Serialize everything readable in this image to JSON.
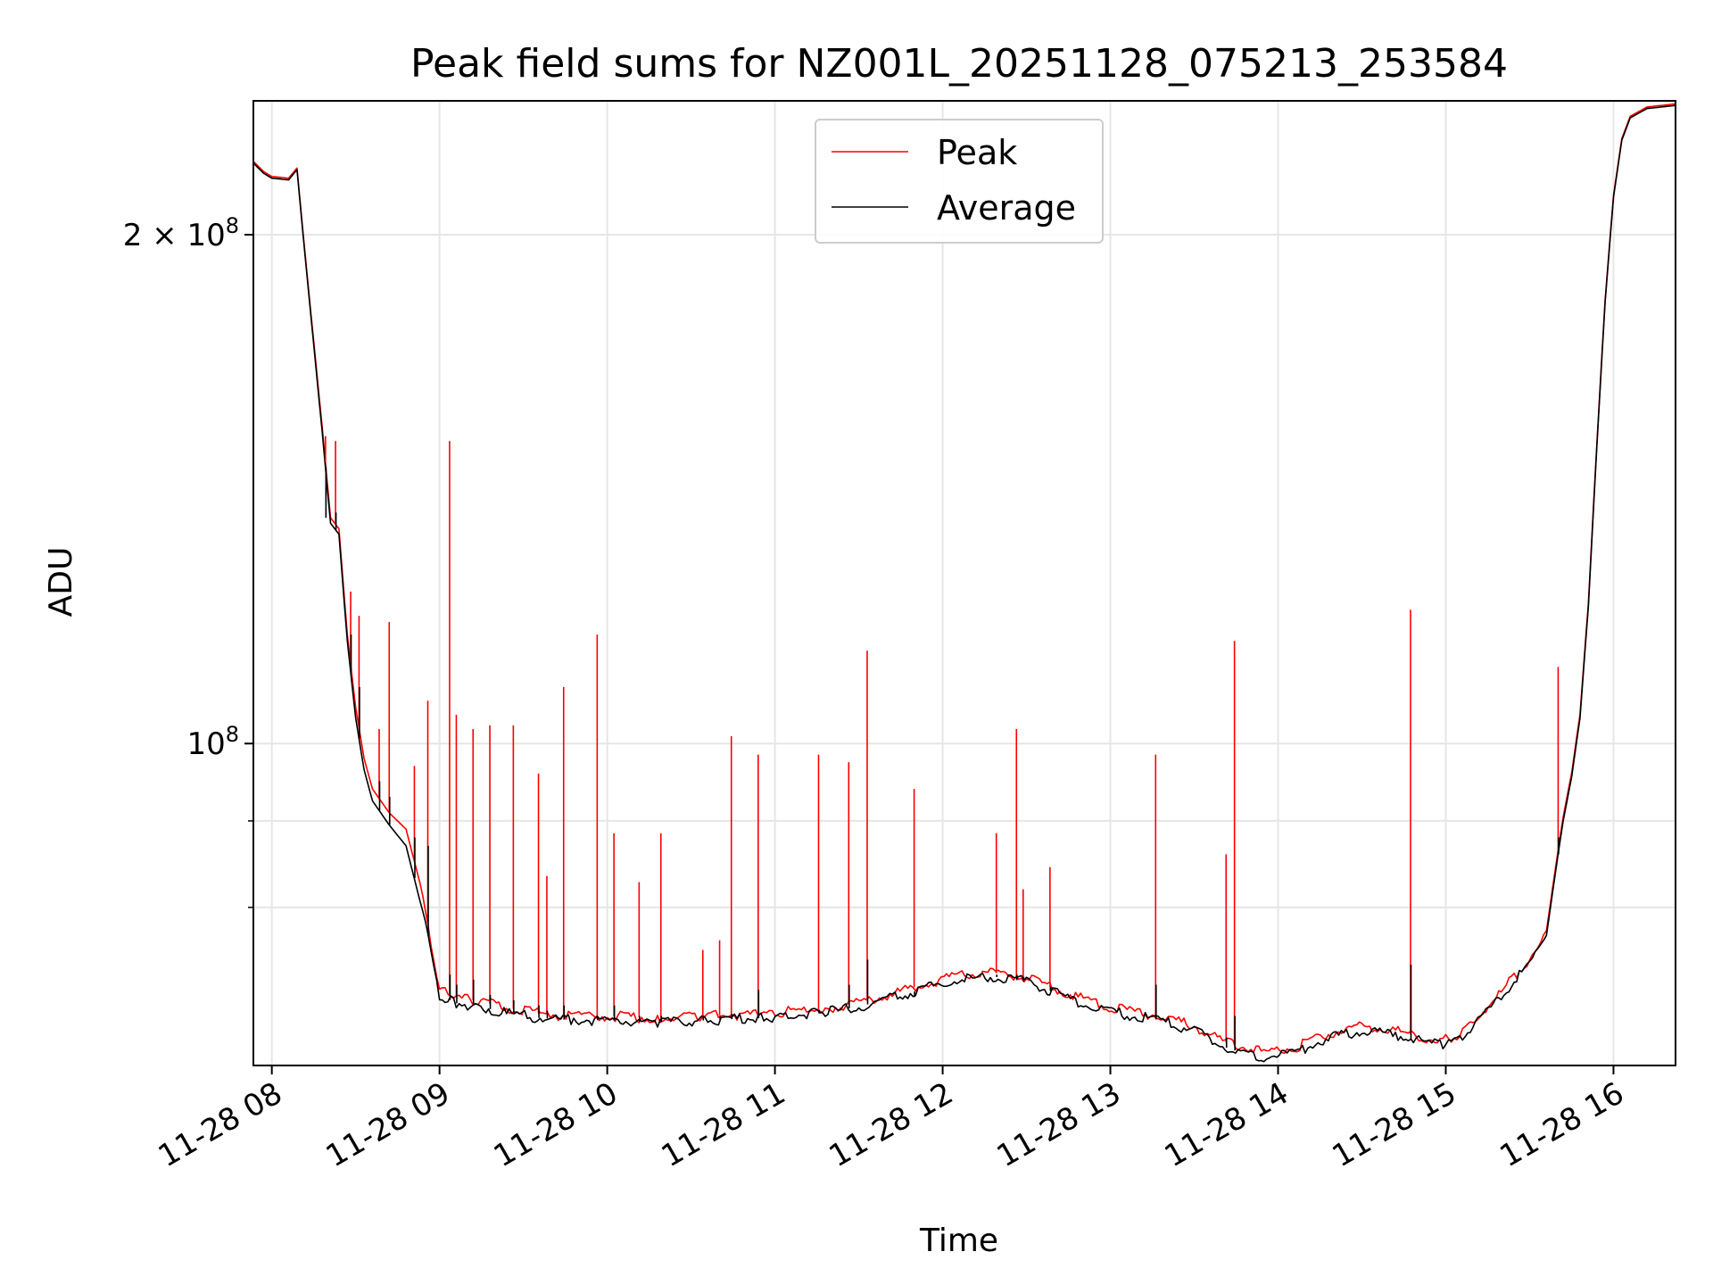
{
  "chart_data": {
    "type": "line",
    "title": "Peak field sums for NZ001L_20251128_075213_253584",
    "xlabel": "Time",
    "ylabel": "ADU",
    "yscale": "log",
    "xlim": [
      7.89,
      16.37
    ],
    "ylim": [
      64500000,
      240000000
    ],
    "x_ticks": [
      {
        "value": 8,
        "label": "11-28 08"
      },
      {
        "value": 9,
        "label": "11-28 09"
      },
      {
        "value": 10,
        "label": "11-28 10"
      },
      {
        "value": 11,
        "label": "11-28 11"
      },
      {
        "value": 12,
        "label": "11-28 12"
      },
      {
        "value": 13,
        "label": "11-28 13"
      },
      {
        "value": 14,
        "label": "11-28 14"
      },
      {
        "value": 15,
        "label": "11-28 15"
      },
      {
        "value": 16,
        "label": "11-28 16"
      }
    ],
    "y_ticks": [
      {
        "value": 200000000,
        "label": "2 × 10",
        "exp": "8"
      },
      {
        "value": 100000000,
        "label": "10",
        "exp": "8"
      }
    ],
    "y_minor_ticks": [
      80000000,
      90000000
    ],
    "grid": true,
    "legend": {
      "position": "top-center"
    },
    "series": [
      {
        "name": "Peak",
        "color": "#ff0000",
        "x": [
          7.89,
          7.95,
          8.0,
          8.1,
          8.15,
          8.2,
          8.3,
          8.35,
          8.4,
          8.45,
          8.5,
          8.55,
          8.6,
          8.7,
          8.8,
          8.9,
          9.0,
          9.1,
          9.2,
          9.4,
          9.6,
          9.8,
          10.0,
          10.3,
          10.6,
          10.9,
          11.0,
          11.3,
          11.5,
          11.7,
          11.9,
          12.1,
          12.3,
          12.5,
          12.7,
          12.9,
          13.1,
          13.3,
          13.5,
          13.7,
          13.9,
          14.1,
          14.3,
          14.5,
          14.7,
          14.9,
          15.0,
          15.1,
          15.3,
          15.5,
          15.6,
          15.67,
          15.7,
          15.75,
          15.8,
          15.85,
          15.9,
          15.95,
          16.0,
          16.05,
          16.1,
          16.2,
          16.37
        ],
        "y": [
          221000000,
          218000000,
          216500000,
          216000000,
          219000000,
          194000000,
          154000000,
          136000000,
          134000000,
          116000000,
          105000000,
          98000000,
          94000000,
          91000000,
          89000000,
          81500000,
          71500000,
          70800000,
          70500000,
          69800000,
          69200000,
          69000000,
          69000000,
          68800000,
          69000000,
          69200000,
          69300000,
          69700000,
          70300000,
          71100000,
          72100000,
          72900000,
          73200000,
          72700000,
          71400000,
          70200000,
          69500000,
          69000000,
          68000000,
          66500000,
          65700000,
          66100000,
          67300000,
          68000000,
          67600000,
          66900000,
          66800000,
          67500000,
          70700000,
          74600000,
          77500000,
          86500000,
          90500000,
          96000000,
          104000000,
          121000000,
          150000000,
          183000000,
          211000000,
          228000000,
          235000000,
          238000000,
          239000000
        ]
      },
      {
        "name": "Average",
        "color": "#000000",
        "x": [
          7.89,
          7.95,
          8.0,
          8.1,
          8.15,
          8.2,
          8.3,
          8.35,
          8.4,
          8.45,
          8.5,
          8.55,
          8.6,
          8.7,
          8.8,
          8.9,
          9.0,
          9.1,
          9.2,
          9.4,
          9.6,
          9.8,
          10.0,
          10.3,
          10.6,
          10.9,
          11.0,
          11.3,
          11.5,
          11.7,
          11.9,
          12.1,
          12.3,
          12.5,
          12.7,
          12.9,
          13.1,
          13.3,
          13.5,
          13.7,
          13.9,
          14.1,
          14.3,
          14.5,
          14.7,
          14.9,
          15.0,
          15.1,
          15.3,
          15.5,
          15.6,
          15.67,
          15.7,
          15.75,
          15.8,
          15.85,
          15.9,
          15.95,
          16.0,
          16.05,
          16.1,
          16.2,
          16.37
        ],
        "y": [
          220500000,
          217500000,
          216000000,
          215500000,
          218500000,
          193500000,
          153000000,
          135000000,
          133000000,
          115000000,
          103500000,
          96500000,
          92500000,
          89500000,
          87000000,
          79500000,
          71000000,
          70200000,
          70000000,
          69300000,
          68800000,
          68600000,
          68600000,
          68400000,
          68600000,
          68800000,
          68900000,
          69300000,
          69900000,
          70700000,
          71700000,
          72500000,
          72800000,
          72300000,
          71000000,
          69800000,
          69100000,
          68600000,
          67600000,
          66000000,
          65200000,
          65700000,
          66900000,
          67600000,
          67200000,
          66500000,
          66400000,
          67100000,
          70300000,
          74200000,
          77000000,
          86000000,
          90000000,
          95500000,
          103500000,
          120500000,
          149500000,
          182500000,
          210500000,
          227500000,
          234500000,
          237500000,
          238500000
        ]
      }
    ],
    "spikes": [
      {
        "x": 8.32,
        "peak": 152000000,
        "avg": 136000000
      },
      {
        "x": 8.38,
        "peak": 151000000,
        "avg": 137000000
      },
      {
        "x": 8.47,
        "peak": 123000000,
        "avg": 116000000
      },
      {
        "x": 8.52,
        "peak": 119000000,
        "avg": 108000000
      },
      {
        "x": 8.64,
        "peak": 102000000,
        "avg": 95000000
      },
      {
        "x": 8.7,
        "peak": 118000000,
        "avg": 93000000
      },
      {
        "x": 8.85,
        "peak": 97000000,
        "avg": 88000000
      },
      {
        "x": 8.93,
        "peak": 106000000,
        "avg": 87000000
      },
      {
        "x": 9.06,
        "peak": 151000000,
        "avg": 73000000
      },
      {
        "x": 9.1,
        "peak": 104000000,
        "avg": 72000000
      },
      {
        "x": 9.2,
        "peak": 102000000,
        "avg": 72500000
      },
      {
        "x": 9.3,
        "peak": 102500000,
        "avg": 71000000
      },
      {
        "x": 9.44,
        "peak": 102500000,
        "avg": 70500000
      },
      {
        "x": 9.59,
        "peak": 96000000,
        "avg": 70000000
      },
      {
        "x": 9.64,
        "peak": 83500000,
        "avg": 69500000
      },
      {
        "x": 9.74,
        "peak": 108000000,
        "avg": 70000000
      },
      {
        "x": 9.94,
        "peak": 116000000,
        "avg": 69000000
      },
      {
        "x": 10.04,
        "peak": 88500000,
        "avg": 70000000
      },
      {
        "x": 10.19,
        "peak": 82800000,
        "avg": 69000000
      },
      {
        "x": 10.32,
        "peak": 88500000,
        "avg": 69000000
      },
      {
        "x": 10.57,
        "peak": 75500000,
        "avg": 69000000
      },
      {
        "x": 10.67,
        "peak": 76500000,
        "avg": 69000000
      },
      {
        "x": 10.74,
        "peak": 101000000,
        "avg": 69200000
      },
      {
        "x": 10.9,
        "peak": 98500000,
        "avg": 71500000
      },
      {
        "x": 11.26,
        "peak": 98500000,
        "avg": 69600000
      },
      {
        "x": 11.44,
        "peak": 97500000,
        "avg": 72000000
      },
      {
        "x": 11.55,
        "peak": 113500000,
        "avg": 74500000
      },
      {
        "x": 11.83,
        "peak": 94000000,
        "avg": 70800000
      },
      {
        "x": 12.32,
        "peak": 88500000,
        "avg": 73000000
      },
      {
        "x": 12.44,
        "peak": 102000000,
        "avg": 73000000
      },
      {
        "x": 12.48,
        "peak": 82000000,
        "avg": 72800000
      },
      {
        "x": 12.64,
        "peak": 84500000,
        "avg": 71800000
      },
      {
        "x": 13.27,
        "peak": 98500000,
        "avg": 72000000
      },
      {
        "x": 13.69,
        "peak": 86000000,
        "avg": 67000000
      },
      {
        "x": 13.74,
        "peak": 115000000,
        "avg": 69000000
      },
      {
        "x": 14.79,
        "peak": 120000000,
        "avg": 74000000
      },
      {
        "x": 15.67,
        "peak": 111000000,
        "avg": 88000000
      }
    ]
  }
}
